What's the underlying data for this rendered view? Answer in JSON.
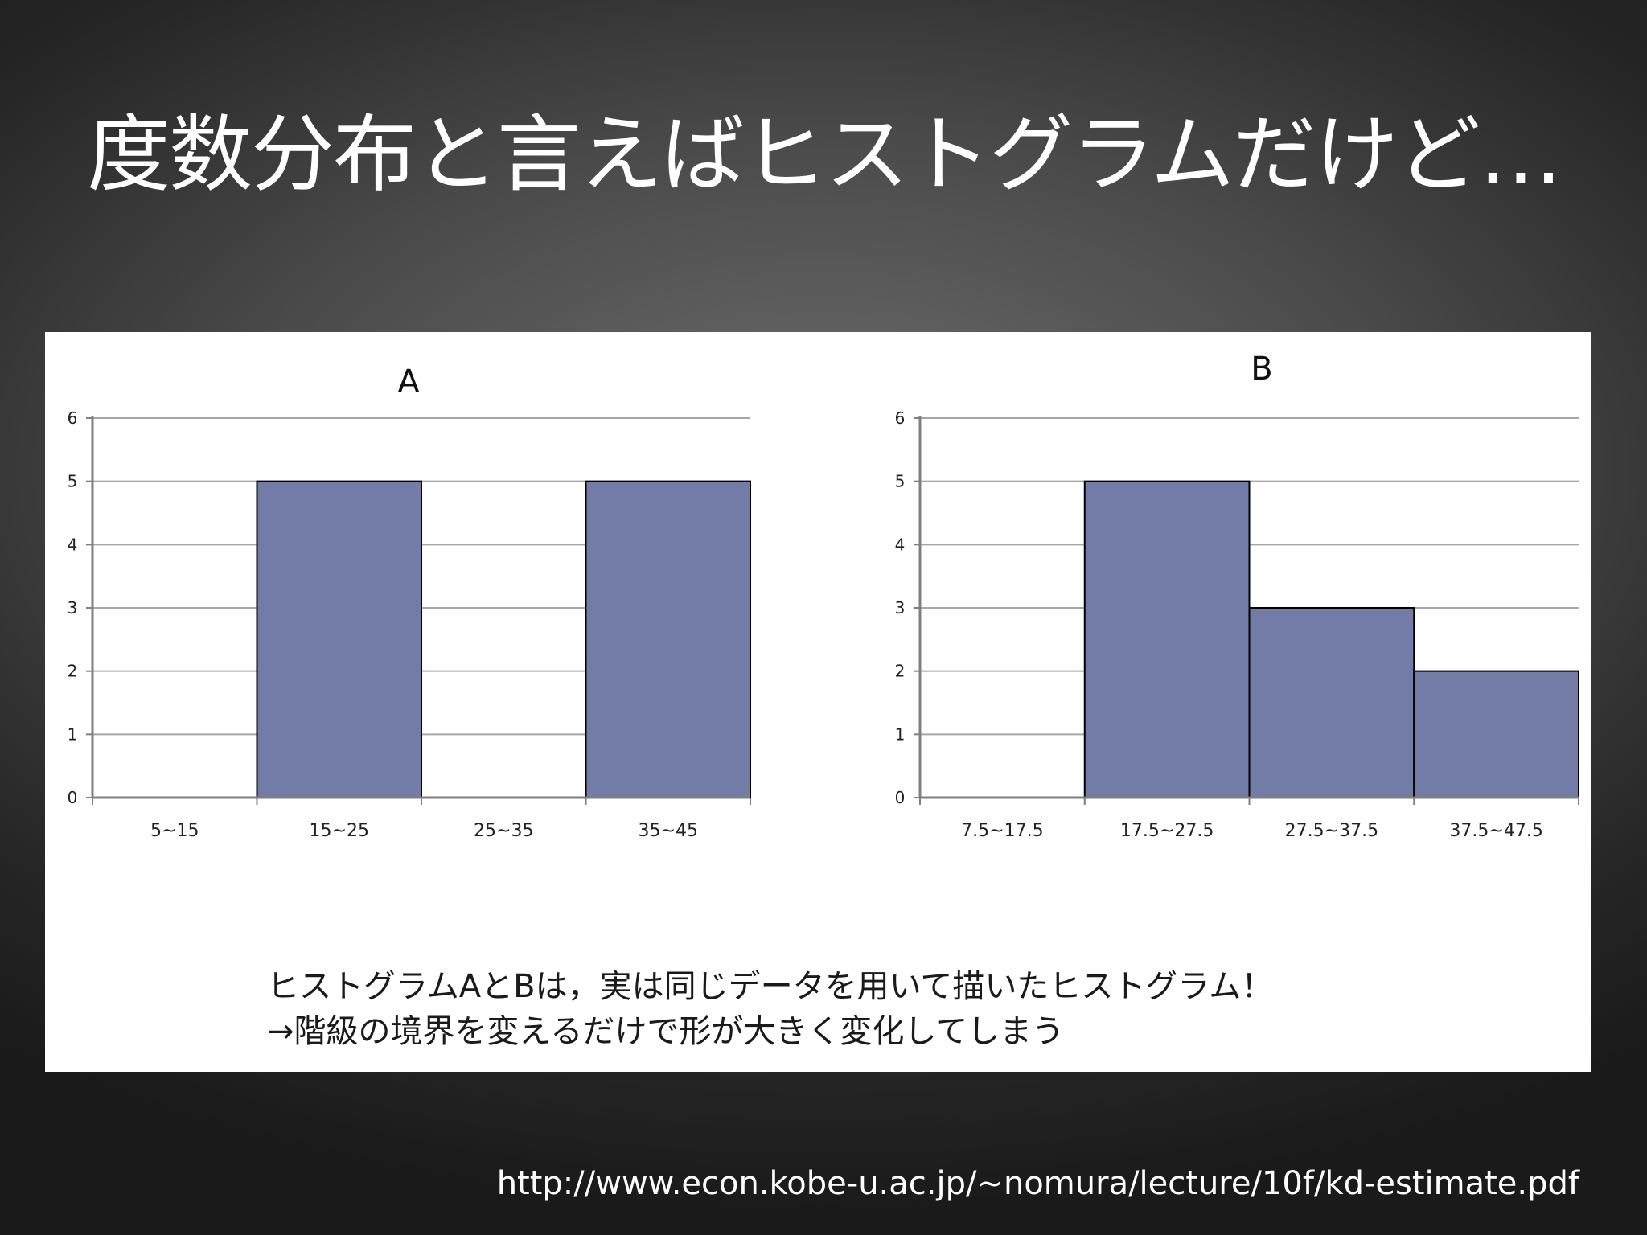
{
  "slide": {
    "title": "度数分布と言えばヒストグラムだけど…",
    "caption_line1": "ヒストグラムAとBは，実は同じデータを用いて描いたヒストグラム！",
    "caption_line2": "→階級の境界を変えるだけで形が大きく変化してしまう",
    "source_url": "http://www.econ.kobe-u.ac.jp/~nomura/lecture/10f/kd-estimate.pdf"
  },
  "colors": {
    "bar_fill": "#737ca6",
    "bar_stroke": "#000000",
    "grid": "#a6a6a6",
    "axis": "#7f7f7f"
  },
  "chart_data": [
    {
      "type": "bar",
      "title": "A",
      "categories": [
        "5~15",
        "15~25",
        "25~35",
        "35~45"
      ],
      "values": [
        0,
        5,
        0,
        5
      ],
      "ylim": [
        0,
        6
      ],
      "yticks": [
        "0",
        "1",
        "2",
        "3",
        "4",
        "5",
        "6"
      ],
      "xlabel": "",
      "ylabel": "",
      "grid": true,
      "legend": "none"
    },
    {
      "type": "bar",
      "title": "B",
      "categories": [
        "7.5~17.5",
        "17.5~27.5",
        "27.5~37.5",
        "37.5~47.5"
      ],
      "values": [
        0,
        5,
        3,
        2
      ],
      "ylim": [
        0,
        6
      ],
      "yticks": [
        "0",
        "1",
        "2",
        "3",
        "4",
        "5",
        "6"
      ],
      "xlabel": "",
      "ylabel": "",
      "grid": true,
      "legend": "none"
    }
  ]
}
